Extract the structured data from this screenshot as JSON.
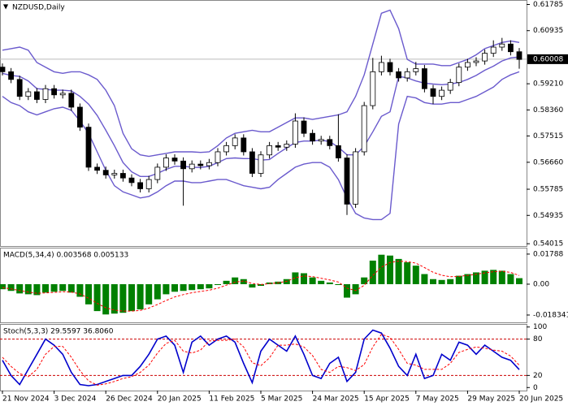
{
  "chart_data": [
    {
      "type": "candlestick",
      "title": "NZDUSD,Daily",
      "categories": [
        "21 Nov 2024",
        null,
        null,
        null,
        null,
        null,
        "3 Dec 2024",
        null,
        null,
        null,
        null,
        null,
        "26 Dec 2024",
        null,
        null,
        null,
        null,
        null,
        "20 Jan 2025",
        null,
        null,
        null,
        null,
        null,
        "11 Feb 2025",
        null,
        null,
        null,
        null,
        null,
        "5 Mar 2025",
        null,
        null,
        null,
        null,
        null,
        "24 Mar 2025",
        null,
        null,
        null,
        null,
        null,
        "15 Apr 2025",
        null,
        null,
        null,
        null,
        null,
        "7 May 2025",
        null,
        null,
        null,
        null,
        null,
        "29 May 2025",
        null,
        null,
        null,
        null,
        null,
        "20 Jun 2025"
      ],
      "ohlc": [
        [
          0.5975,
          0.5987,
          0.5948,
          0.596
        ],
        [
          0.596,
          0.5972,
          0.5923,
          0.5935
        ],
        [
          0.5935,
          0.5947,
          0.5868,
          0.588
        ],
        [
          0.588,
          0.5907,
          0.5868,
          0.5895
        ],
        [
          0.5895,
          0.5907,
          0.5858,
          0.587
        ],
        [
          0.587,
          0.5917,
          0.5858,
          0.5905
        ],
        [
          0.5905,
          0.5917,
          0.5873,
          0.5885
        ],
        [
          0.5885,
          0.5902,
          0.5873,
          0.589
        ],
        [
          0.589,
          0.5902,
          0.5833,
          0.5845
        ],
        [
          0.5845,
          0.5857,
          0.5768,
          0.578
        ],
        [
          0.578,
          0.5792,
          0.5638,
          0.565
        ],
        [
          0.565,
          0.5662,
          0.5628,
          0.564
        ],
        [
          0.564,
          0.5652,
          0.5613,
          0.5625
        ],
        [
          0.5625,
          0.5642,
          0.5613,
          0.563
        ],
        [
          0.563,
          0.5642,
          0.5603,
          0.5615
        ],
        [
          0.5615,
          0.5627,
          0.5588,
          0.56
        ],
        [
          0.56,
          0.5612,
          0.5568,
          0.558
        ],
        [
          0.558,
          0.5622,
          0.5568,
          0.561
        ],
        [
          0.561,
          0.5662,
          0.5598,
          0.565
        ],
        [
          0.565,
          0.5692,
          0.5638,
          0.568
        ],
        [
          0.568,
          0.5692,
          0.5658,
          0.567
        ],
        [
          0.567,
          0.5682,
          0.5525,
          0.5645
        ],
        [
          0.5645,
          0.5672,
          0.5633,
          0.566
        ],
        [
          0.566,
          0.5672,
          0.5643,
          0.5655
        ],
        [
          0.5655,
          0.5677,
          0.5643,
          0.5665
        ],
        [
          0.5665,
          0.5712,
          0.5653,
          0.57
        ],
        [
          0.57,
          0.5732,
          0.5688,
          0.572
        ],
        [
          0.572,
          0.5757,
          0.5708,
          0.5745
        ],
        [
          0.5745,
          0.5757,
          0.5688,
          0.57
        ],
        [
          0.57,
          0.5712,
          0.5618,
          0.563
        ],
        [
          0.563,
          0.5702,
          0.5618,
          0.569
        ],
        [
          0.569,
          0.5732,
          0.5678,
          0.572
        ],
        [
          0.572,
          0.5732,
          0.5703,
          0.5715
        ],
        [
          0.5715,
          0.5737,
          0.5703,
          0.5725
        ],
        [
          0.5725,
          0.5825,
          0.5713,
          0.58
        ],
        [
          0.58,
          0.5812,
          0.5748,
          0.576
        ],
        [
          0.576,
          0.5772,
          0.5723,
          0.5735
        ],
        [
          0.5735,
          0.5752,
          0.5723,
          0.574
        ],
        [
          0.574,
          0.5752,
          0.5708,
          0.572
        ],
        [
          0.572,
          0.5822,
          0.5668,
          0.568
        ],
        [
          0.568,
          0.5692,
          0.5495,
          0.553
        ],
        [
          0.553,
          0.5712,
          0.5518,
          0.57
        ],
        [
          0.57,
          0.5862,
          0.5688,
          0.585
        ],
        [
          0.585,
          0.6005,
          0.5838,
          0.596
        ],
        [
          0.596,
          0.6012,
          0.5948,
          0.599
        ],
        [
          0.599,
          0.6002,
          0.5948,
          0.596
        ],
        [
          0.596,
          0.5972,
          0.5928,
          0.594
        ],
        [
          0.594,
          0.5972,
          0.5928,
          0.596
        ],
        [
          0.596,
          0.5992,
          0.5948,
          0.597
        ],
        [
          0.597,
          0.5982,
          0.5893,
          0.5905
        ],
        [
          0.5905,
          0.5917,
          0.5855,
          0.588
        ],
        [
          0.588,
          0.5912,
          0.5868,
          0.59
        ],
        [
          0.59,
          0.5937,
          0.5888,
          0.5925
        ],
        [
          0.5925,
          0.5987,
          0.5913,
          0.5975
        ],
        [
          0.5975,
          0.6002,
          0.5963,
          0.599
        ],
        [
          0.599,
          0.6007,
          0.5978,
          0.5995
        ],
        [
          0.5995,
          0.6032,
          0.5983,
          0.602
        ],
        [
          0.602,
          0.6062,
          0.6008,
          0.604
        ],
        [
          0.604,
          0.607,
          0.6028,
          0.605
        ],
        [
          0.605,
          0.6062,
          0.6013,
          0.6025
        ],
        [
          0.6025,
          0.6037,
          0.597,
          0.6
        ]
      ],
      "band_color": "#6a5acd",
      "bands": [
        {
          "values": [
            0.603,
            0.6035,
            0.604,
            0.603,
            0.599,
            0.5975,
            0.596,
            0.5955,
            0.596,
            0.596,
            0.595,
            0.5935,
            0.59,
            0.585,
            0.576,
            0.571,
            0.569,
            0.5685,
            0.569,
            0.5695,
            0.57,
            0.57,
            0.57,
            0.5698,
            0.57,
            0.572,
            0.5745,
            0.576,
            0.5765,
            0.577,
            0.5765,
            0.5765,
            0.578,
            0.5795,
            0.581,
            0.581,
            0.5805,
            0.581,
            0.5815,
            0.582,
            0.583,
            0.588,
            0.595,
            0.605,
            0.615,
            0.616,
            0.61,
            0.6,
            0.5985,
            0.5985,
            0.5985,
            0.598,
            0.598,
            0.599,
            0.6,
            0.6015,
            0.6035,
            0.6045,
            0.6055,
            0.606,
            0.6055
          ]
        },
        {
          "values": [
            0.5955,
            0.5948,
            0.5945,
            0.593,
            0.5905,
            0.5903,
            0.59,
            0.59,
            0.5898,
            0.588,
            0.5855,
            0.5818,
            0.577,
            0.572,
            0.5665,
            0.5635,
            0.562,
            0.562,
            0.563,
            0.5643,
            0.5653,
            0.5653,
            0.565,
            0.5649,
            0.5653,
            0.5665,
            0.5678,
            0.568,
            0.5678,
            0.5678,
            0.5673,
            0.5675,
            0.5695,
            0.5713,
            0.573,
            0.5735,
            0.5735,
            0.5738,
            0.5733,
            0.5715,
            0.569,
            0.569,
            0.5718,
            0.5765,
            0.5815,
            0.583,
            0.5945,
            0.594,
            0.593,
            0.5923,
            0.592,
            0.5918,
            0.592,
            0.5925,
            0.5935,
            0.5948,
            0.5965,
            0.5978,
            0.5995,
            0.6005,
            0.6008
          ]
        },
        {
          "values": [
            0.588,
            0.586,
            0.585,
            0.583,
            0.582,
            0.583,
            0.584,
            0.5845,
            0.5835,
            0.58,
            0.576,
            0.57,
            0.564,
            0.559,
            0.557,
            0.556,
            0.555,
            0.5555,
            0.557,
            0.559,
            0.5605,
            0.5605,
            0.56,
            0.56,
            0.5605,
            0.561,
            0.561,
            0.56,
            0.559,
            0.5585,
            0.558,
            0.5585,
            0.561,
            0.563,
            0.565,
            0.566,
            0.5665,
            0.5665,
            0.565,
            0.561,
            0.555,
            0.55,
            0.5485,
            0.548,
            0.548,
            0.55,
            0.579,
            0.588,
            0.5875,
            0.586,
            0.5855,
            0.5855,
            0.586,
            0.586,
            0.587,
            0.588,
            0.5895,
            0.591,
            0.5935,
            0.595,
            0.596
          ]
        }
      ],
      "current_price": 0.60008,
      "ylim": [
        0.5394,
        0.6193
      ],
      "yticks": [
        0.61785,
        0.60935,
        {
          "value": 0.5921,
          "label": "0.59210"
        },
        {
          "value": 0.5836,
          "label": "0.58360"
        },
        0.57515,
        {
          "value": 0.5666,
          "label": "0.56660"
        },
        0.55785,
        0.54935,
        0.54015
      ]
    },
    {
      "type": "macd",
      "title": "MACD(5,34,4) 0.003568 0.005133",
      "color": "#008000",
      "signal_color": "#ff0000",
      "values": [
        -0.003,
        -0.004,
        -0.0055,
        -0.006,
        -0.0065,
        -0.005,
        -0.0045,
        -0.004,
        -0.005,
        -0.0075,
        -0.012,
        -0.016,
        -0.018,
        -0.0175,
        -0.017,
        -0.016,
        -0.015,
        -0.012,
        -0.009,
        -0.006,
        -0.0045,
        -0.004,
        -0.0035,
        -0.003,
        -0.0025,
        -0.0005,
        0.002,
        0.004,
        0.003,
        -0.002,
        -0.001,
        0.001,
        0.0015,
        0.003,
        0.007,
        0.0065,
        0.004,
        0.002,
        0.001,
        -0.0005,
        -0.008,
        -0.006,
        0.004,
        0.014,
        0.0175,
        0.017,
        0.015,
        0.013,
        0.011,
        0.006,
        0.003,
        0.0025,
        0.003,
        0.005,
        0.006,
        0.007,
        0.008,
        0.0085,
        0.008,
        0.006,
        0.003568
      ],
      "signal": [
        -0.002,
        -0.0028,
        -0.0038,
        -0.0047,
        -0.0054,
        -0.0052,
        -0.0049,
        -0.0045,
        -0.0047,
        -0.0058,
        -0.0083,
        -0.0114,
        -0.014,
        -0.0154,
        -0.016,
        -0.016,
        -0.0156,
        -0.0142,
        -0.0121,
        -0.0097,
        -0.0076,
        -0.0062,
        -0.0051,
        -0.0043,
        -0.0036,
        -0.0024,
        -0.0006,
        0.0012,
        0.0019,
        0.0004,
        -0.0002,
        0.0003,
        0.0008,
        0.0017,
        0.0038,
        0.0049,
        0.0045,
        0.0035,
        0.0025,
        0.0013,
        -0.0024,
        -0.0038,
        -0.0007,
        0.0052,
        0.0101,
        0.0129,
        0.0137,
        0.0134,
        0.0125,
        0.0099,
        0.0071,
        0.0053,
        0.0044,
        0.0046,
        0.0052,
        0.0059,
        0.0067,
        0.0074,
        0.0077,
        0.007,
        0.005133
      ],
      "ylim": [
        -0.0227,
        0.0217
      ],
      "yticks": [
        0.01788,
        {
          "value": 0,
          "label": "0.00"
        },
        -0.018341
      ]
    },
    {
      "type": "stoch",
      "title": "Stoch(5,3,3) 29.5597 36.8060",
      "series": [
        {
          "color": "#0000cc",
          "values": [
            45,
            20,
            5,
            30,
            55,
            80,
            70,
            55,
            25,
            5,
            3,
            5,
            10,
            15,
            20,
            20,
            35,
            55,
            80,
            85,
            70,
            25,
            75,
            85,
            70,
            80,
            85,
            75,
            40,
            8,
            60,
            80,
            70,
            60,
            85,
            55,
            20,
            15,
            40,
            50,
            10,
            25,
            80,
            95,
            90,
            65,
            35,
            20,
            55,
            15,
            20,
            55,
            45,
            75,
            70,
            55,
            70,
            60,
            50,
            45,
            29.5597
          ]
        },
        {
          "color": "#ff0000",
          "dashed": true,
          "values": [
            50,
            35,
            23,
            18,
            30,
            55,
            68,
            68,
            50,
            28,
            11,
            4,
            6,
            10,
            15,
            18,
            25,
            37,
            57,
            73,
            78,
            60,
            57,
            62,
            77,
            78,
            78,
            80,
            67,
            41,
            36,
            49,
            70,
            70,
            72,
            67,
            53,
            30,
            25,
            35,
            33,
            28,
            38,
            67,
            88,
            83,
            63,
            40,
            37,
            30,
            30,
            30,
            40,
            58,
            63,
            67,
            65,
            62,
            60,
            52,
            36.806
          ]
        }
      ],
      "levels": [
        80,
        20
      ],
      "level_color": "#cc0000",
      "ylim": [
        -5,
        105
      ],
      "yticks": [
        100,
        80,
        20,
        0
      ]
    }
  ]
}
